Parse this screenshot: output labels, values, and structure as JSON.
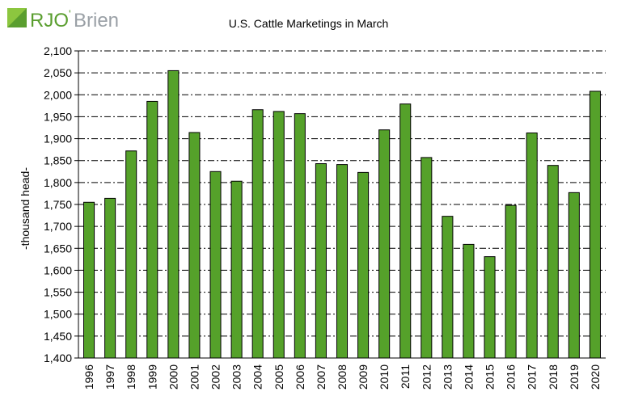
{
  "logo": {
    "text_rj": "RJO",
    "text_brien": "Brien",
    "brand_color": "#5a9e2f",
    "accent_color": "#1d5fa6"
  },
  "chart_data": {
    "type": "bar",
    "title": "U.S. Cattle Marketings  in March",
    "xlabel": "",
    "ylabel": "-thousand head-",
    "ylim": [
      1400,
      2100
    ],
    "ytick_step": 50,
    "grid": true,
    "bar_color": "#55a12a",
    "categories": [
      "1996",
      "1997",
      "1998",
      "1999",
      "2000",
      "2001",
      "2002",
      "2003",
      "2004",
      "2005",
      "2006",
      "2007",
      "2008",
      "2009",
      "2010",
      "2011",
      "2012",
      "2013",
      "2014",
      "2015",
      "2016",
      "2017",
      "2018",
      "2019",
      "2020"
    ],
    "values": [
      1755,
      1764,
      1872,
      1985,
      2055,
      1914,
      1825,
      1803,
      1966,
      1962,
      1957,
      1843,
      1841,
      1823,
      1920,
      1979,
      1857,
      1723,
      1659,
      1631,
      1748,
      1913,
      1839,
      1777,
      2008
    ]
  }
}
